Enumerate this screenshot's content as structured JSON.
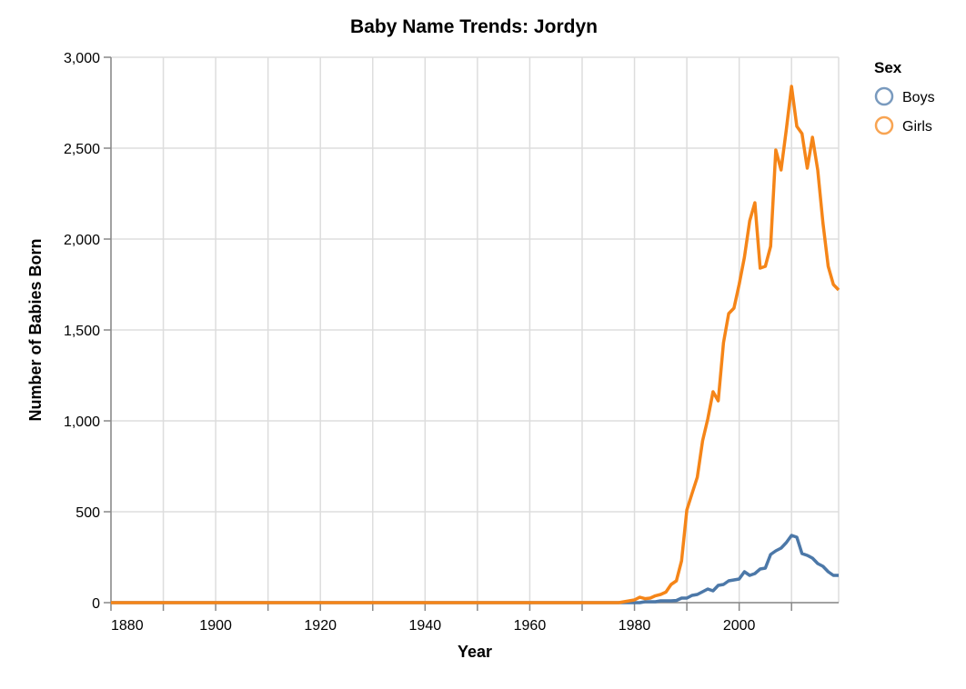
{
  "chart_data": {
    "type": "line",
    "title": "Baby Name Trends: Jordyn",
    "xlabel": "Year",
    "ylabel": "Number of Babies Born",
    "xlim": [
      1880,
      2019
    ],
    "ylim": [
      0,
      3000
    ],
    "x_ticks": [
      1880,
      1900,
      1920,
      1940,
      1960,
      1980,
      2000
    ],
    "y_ticks": [
      0,
      500,
      1000,
      1500,
      2000,
      2500,
      3000
    ],
    "y_tick_labels": [
      "0",
      "500",
      "1,000",
      "1,500",
      "2,000",
      "2,500",
      "3,000"
    ],
    "grid": true,
    "legend": {
      "title": "Sex",
      "position": "right",
      "entries": [
        "Boys",
        "Girls"
      ]
    },
    "series": [
      {
        "name": "Boys",
        "color": "#4c78a8",
        "x": [
          1880,
          1981,
          1982,
          1983,
          1984,
          1985,
          1986,
          1987,
          1988,
          1989,
          1990,
          1991,
          1992,
          1993,
          1994,
          1995,
          1996,
          1997,
          1998,
          1999,
          2000,
          2001,
          2002,
          2003,
          2004,
          2005,
          2006,
          2007,
          2008,
          2009,
          2010,
          2011,
          2012,
          2013,
          2014,
          2015,
          2016,
          2017,
          2018,
          2019
        ],
        "values": [
          0,
          0,
          5,
          5,
          5,
          10,
          10,
          10,
          12,
          25,
          25,
          40,
          45,
          60,
          75,
          65,
          95,
          100,
          120,
          125,
          130,
          170,
          150,
          160,
          185,
          190,
          265,
          285,
          300,
          330,
          370,
          360,
          270,
          260,
          245,
          215,
          200,
          170,
          150,
          150
        ]
      },
      {
        "name": "Girls",
        "color": "#f58518",
        "x": [
          1880,
          1977,
          1978,
          1979,
          1980,
          1981,
          1982,
          1983,
          1984,
          1985,
          1986,
          1987,
          1988,
          1989,
          1990,
          1991,
          1992,
          1993,
          1994,
          1995,
          1996,
          1997,
          1998,
          1999,
          2000,
          2001,
          2002,
          2003,
          2004,
          2005,
          2006,
          2007,
          2008,
          2009,
          2010,
          2011,
          2012,
          2013,
          2014,
          2015,
          2016,
          2017,
          2018,
          2019
        ],
        "values": [
          0,
          0,
          5,
          10,
          15,
          30,
          22,
          25,
          38,
          45,
          58,
          100,
          120,
          230,
          510,
          600,
          690,
          890,
          1010,
          1160,
          1110,
          1430,
          1590,
          1620,
          1750,
          1900,
          2100,
          2200,
          1840,
          1850,
          1960,
          2490,
          2380,
          2600,
          2840,
          2620,
          2580,
          2390,
          2560,
          2380,
          2090,
          1850,
          1750,
          1720
        ]
      }
    ]
  }
}
